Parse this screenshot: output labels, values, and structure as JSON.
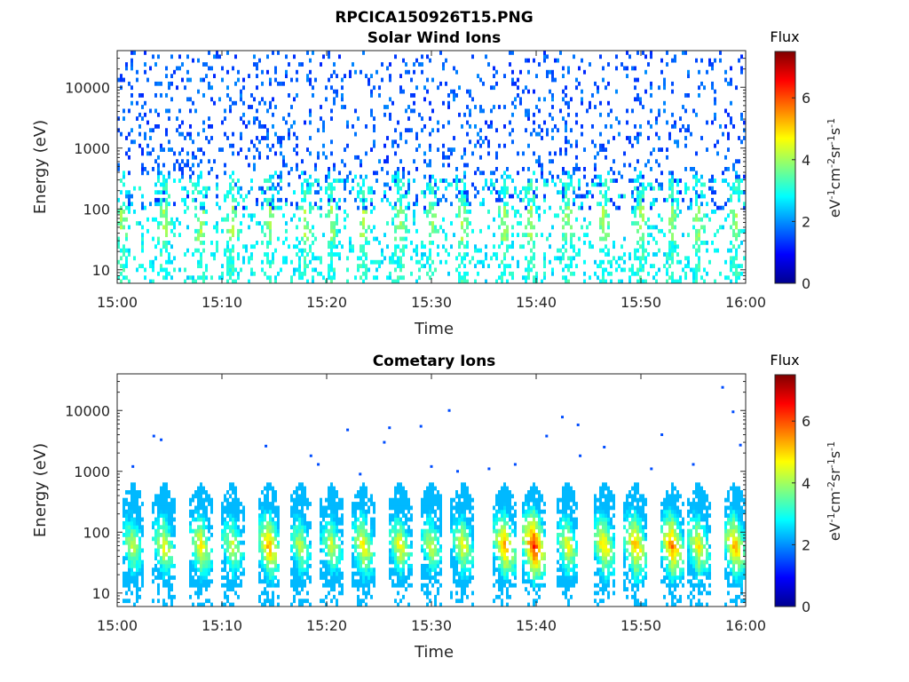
{
  "figure_title": "RPCICA150926T15.PNG",
  "colormap": "jet",
  "chart_data": [
    {
      "type": "heatmap",
      "title": "Solar Wind Ions",
      "xlabel": "Time",
      "ylabel": "Energy (eV)",
      "x_ticks": [
        "15:00",
        "15:10",
        "15:20",
        "15:30",
        "15:40",
        "15:50",
        "16:00"
      ],
      "xlim": [
        "15:00",
        "16:00"
      ],
      "y_scale": "log",
      "y_ticks": [
        10,
        100,
        1000,
        10000
      ],
      "y_tick_labels": [
        "10",
        "100",
        "1000",
        "10000"
      ],
      "ylim": [
        6,
        40000
      ],
      "colorbar": {
        "label": "Flux",
        "units": "eV-1 cm-2 sr-1 s-1",
        "range": [
          0,
          7.5
        ],
        "ticks": [
          "0",
          "2",
          "4",
          "6"
        ]
      },
      "features": {
        "background_scatter": {
          "energy_range": [
            100,
            20000
          ],
          "typical_flux": 1.5
        },
        "low_energy_band": {
          "energy_range": [
            6,
            300
          ],
          "typical_flux": 3
        },
        "bursts_at_minutes": [
          0.5,
          4.5,
          8,
          11,
          14.5,
          18,
          20.5,
          23.5,
          27,
          30,
          33,
          37,
          39.5,
          43,
          46.5,
          50,
          53,
          55.5,
          59
        ]
      }
    },
    {
      "type": "heatmap",
      "title": "Cometary Ions",
      "xlabel": "Time",
      "ylabel": "Energy (eV)",
      "x_ticks": [
        "15:00",
        "15:10",
        "15:20",
        "15:30",
        "15:40",
        "15:50",
        "16:00"
      ],
      "xlim": [
        "15:00",
        "16:00"
      ],
      "y_scale": "log",
      "y_ticks": [
        10,
        100,
        1000,
        10000
      ],
      "y_tick_labels": [
        "10",
        "100",
        "1000",
        "10000"
      ],
      "ylim": [
        6,
        40000
      ],
      "colorbar": {
        "label": "Flux",
        "units": "eV-1 cm-2 sr-1 s-1",
        "range": [
          0,
          7.5
        ],
        "ticks": [
          "0",
          "2",
          "4",
          "6"
        ]
      },
      "features": {
        "burst_energy_range": [
          6,
          700
        ],
        "peak_energy": 60,
        "bursts_at_minutes": [
          1.5,
          4.5,
          8,
          11,
          14.5,
          17.5,
          20.5,
          23.5,
          27,
          30,
          33,
          37,
          39.8,
          43,
          46.5,
          49.5,
          53,
          55.5,
          59
        ],
        "burst_peak_flux": [
          4.5,
          4.8,
          5,
          4.5,
          5.5,
          4.5,
          4.5,
          5,
          4.8,
          4.5,
          4.8,
          5.5,
          6.5,
          4.8,
          5.2,
          5.5,
          5.8,
          5,
          5.5
        ],
        "scattered_high_energy_points": [
          {
            "minute": 1.5,
            "energy": 1200
          },
          {
            "minute": 3.5,
            "energy": 3800
          },
          {
            "minute": 4.2,
            "energy": 3300
          },
          {
            "minute": 14.2,
            "energy": 2600
          },
          {
            "minute": 18.5,
            "energy": 1800
          },
          {
            "minute": 19.2,
            "energy": 1300
          },
          {
            "minute": 22,
            "energy": 4800
          },
          {
            "minute": 23.2,
            "energy": 900
          },
          {
            "minute": 25.5,
            "energy": 3000
          },
          {
            "minute": 26,
            "energy": 5200
          },
          {
            "minute": 29,
            "energy": 5500
          },
          {
            "minute": 30,
            "energy": 1200
          },
          {
            "minute": 31.7,
            "energy": 10000
          },
          {
            "minute": 32.5,
            "energy": 1000
          },
          {
            "minute": 35.5,
            "energy": 1100
          },
          {
            "minute": 38,
            "energy": 1300
          },
          {
            "minute": 41,
            "energy": 3800
          },
          {
            "minute": 42.5,
            "energy": 7800
          },
          {
            "minute": 44,
            "energy": 5800
          },
          {
            "minute": 44.2,
            "energy": 1800
          },
          {
            "minute": 46.5,
            "energy": 2500
          },
          {
            "minute": 52,
            "energy": 4000
          },
          {
            "minute": 51,
            "energy": 1100
          },
          {
            "minute": 55,
            "energy": 1300
          },
          {
            "minute": 57.8,
            "energy": 24000
          },
          {
            "minute": 58.8,
            "energy": 9500
          },
          {
            "minute": 59.5,
            "energy": 2700
          }
        ]
      }
    }
  ]
}
